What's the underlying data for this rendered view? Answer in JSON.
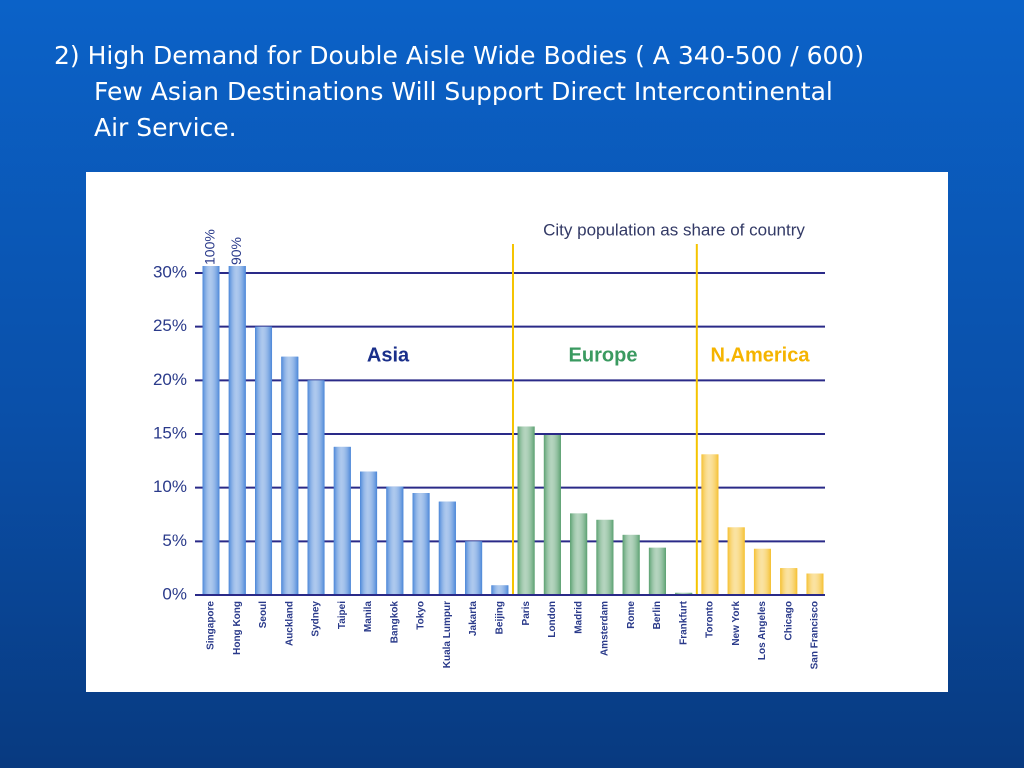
{
  "slide": {
    "title_lines": [
      "2) High Demand for Double Aisle Wide Bodies ( A 340-500 / 600)",
      "Few Asian Destinations Will Support Direct Intercontinental",
      "Air Service."
    ]
  },
  "chart_data": {
    "type": "bar",
    "annotation": "City population as share of country",
    "ylim": [
      0,
      30
    ],
    "yticks": [
      {
        "value": 0,
        "label": "0%"
      },
      {
        "value": 5,
        "label": "5%"
      },
      {
        "value": 10,
        "label": "10%"
      },
      {
        "value": 15,
        "label": "15%"
      },
      {
        "value": 20,
        "label": "20%"
      },
      {
        "value": 25,
        "label": "25%"
      },
      {
        "value": 30,
        "label": "30%"
      }
    ],
    "grid": true,
    "series": [
      {
        "name": "Asia",
        "color": "#4a86d8",
        "label_color": "#1a2f8a",
        "categories": [
          "Singapore",
          "Hong Kong",
          "Seoul",
          "Auckland",
          "Sydney",
          "Taipei",
          "Manila",
          "Bangkok",
          "Tokyo",
          "Kuala Lumpur",
          "Jakarta",
          "Beijing"
        ],
        "values": [
          100,
          90,
          25,
          22.2,
          20,
          13.8,
          11.5,
          10.1,
          9.5,
          8.7,
          5,
          0.9
        ],
        "value_labels": [
          "100%",
          "90%",
          null,
          null,
          null,
          null,
          null,
          null,
          null,
          null,
          null,
          null
        ]
      },
      {
        "name": "Europe",
        "color": "#5aa070",
        "label_color": "#3a9a60",
        "categories": [
          "Paris",
          "London",
          "Madrid",
          "Amsterdam",
          "Rome",
          "Berlin",
          "Frankfurt"
        ],
        "values": [
          15.7,
          14.9,
          7.6,
          7,
          5.6,
          4.4,
          0.2
        ]
      },
      {
        "name": "N.America",
        "color": "#f5c030",
        "label_color": "#f5b400",
        "categories": [
          "Toronto",
          "New York",
          "Los Angeles",
          "Chicago",
          "San Francisco"
        ],
        "values": [
          13.1,
          6.3,
          4.3,
          2.5,
          2
        ]
      }
    ]
  }
}
